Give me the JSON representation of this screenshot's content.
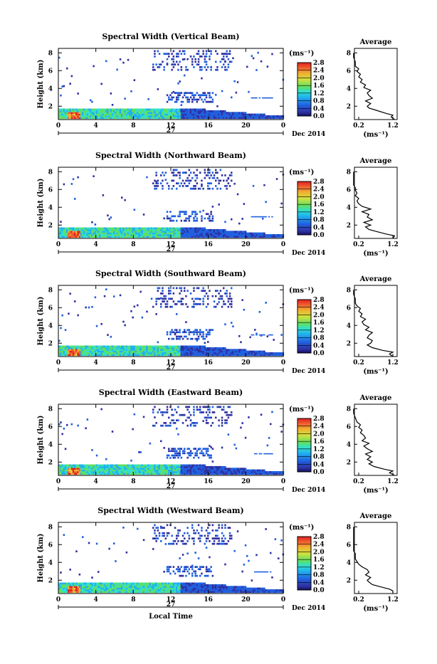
{
  "chart_data": [
    {
      "type": "heatmap",
      "title": "Spectral Width (Vertical Beam)",
      "ylabel": "Height (km)",
      "x_ticks": [
        "0",
        "4",
        "8",
        "12",
        "16",
        "20",
        "0"
      ],
      "y_ticks": [
        "2",
        "4",
        "6",
        "8"
      ],
      "date_day": "27",
      "date_label": "Dec 2014",
      "colorbar": {
        "unit": "(ms⁻¹)",
        "ticks": [
          "0.0",
          "0.4",
          "0.8",
          "1.2",
          "1.6",
          "2.0",
          "2.4",
          "2.8"
        ],
        "range": [
          0,
          2.8
        ]
      },
      "average": {
        "title": "Average",
        "x_ticks": [
          "0.2",
          "1.2"
        ],
        "y_ticks": [
          "2",
          "4",
          "6",
          "8"
        ],
        "unit": "(ms⁻¹)",
        "heights": [
          0.5,
          0.8,
          1.0,
          1.2,
          1.5,
          1.8,
          2.0,
          2.3,
          2.6,
          2.9,
          3.2,
          3.5,
          3.8,
          4.1,
          4.4,
          4.7,
          5.0,
          5.3,
          5.6,
          5.9,
          6.2,
          6.5,
          7.0,
          7.5,
          8.0
        ],
        "values": [
          1.25,
          1.15,
          1.2,
          1.0,
          0.75,
          0.5,
          0.45,
          0.55,
          0.4,
          0.6,
          0.5,
          0.45,
          0.55,
          0.35,
          0.4,
          0.25,
          0.3,
          0.2,
          0.25,
          0.15,
          0.2,
          0.1,
          0.1,
          0.05,
          0.05
        ]
      }
    },
    {
      "type": "heatmap",
      "title": "Spectral Width (Northward Beam)",
      "ylabel": "Height (km)",
      "x_ticks": [
        "0",
        "4",
        "8",
        "12",
        "16",
        "20",
        "0"
      ],
      "y_ticks": [
        "2",
        "4",
        "6",
        "8"
      ],
      "date_day": "27",
      "date_label": "Dec 2014",
      "colorbar": {
        "unit": "(ms⁻¹)",
        "ticks": [
          "0.0",
          "0.4",
          "0.8",
          "1.2",
          "1.6",
          "2.0",
          "2.4",
          "2.8"
        ],
        "range": [
          0,
          2.8
        ]
      },
      "average": {
        "title": "Average",
        "x_ticks": [
          "0.2",
          "1.2"
        ],
        "y_ticks": [
          "2",
          "4",
          "6",
          "8"
        ],
        "unit": "(ms⁻¹)",
        "heights": [
          0.5,
          0.8,
          1.0,
          1.2,
          1.5,
          1.8,
          2.0,
          2.3,
          2.6,
          2.9,
          3.2,
          3.5,
          3.8,
          4.1,
          4.4,
          4.7,
          5.0,
          5.3,
          5.6,
          5.9,
          6.2,
          6.5,
          7.0,
          7.5,
          8.0
        ],
        "values": [
          1.2,
          1.25,
          1.0,
          0.8,
          0.5,
          0.4,
          0.55,
          0.35,
          0.6,
          0.45,
          0.5,
          0.3,
          0.55,
          0.3,
          0.2,
          0.15,
          0.2,
          0.1,
          0.15,
          0.1,
          0.1,
          0.05,
          0.05,
          0.05,
          0.05
        ]
      }
    },
    {
      "type": "heatmap",
      "title": "Spectral Width (Southward Beam)",
      "ylabel": "Height (km)",
      "x_ticks": [
        "0",
        "4",
        "8",
        "12",
        "16",
        "20",
        "0"
      ],
      "y_ticks": [
        "2",
        "4",
        "6",
        "8"
      ],
      "date_day": "27",
      "date_label": "Dec 2014",
      "colorbar": {
        "unit": "(ms⁻¹)",
        "ticks": [
          "0.0",
          "0.4",
          "0.8",
          "1.2",
          "1.6",
          "2.0",
          "2.4",
          "2.8"
        ],
        "range": [
          0,
          2.8
        ]
      },
      "average": {
        "title": "Average",
        "x_ticks": [
          "0.2",
          "1.2"
        ],
        "y_ticks": [
          "2",
          "4",
          "6",
          "8"
        ],
        "unit": "(ms⁻¹)",
        "heights": [
          0.5,
          0.8,
          1.0,
          1.2,
          1.5,
          1.8,
          2.0,
          2.3,
          2.6,
          2.9,
          3.2,
          3.5,
          3.8,
          4.1,
          4.4,
          4.7,
          5.0,
          5.3,
          5.6,
          5.9,
          6.2,
          6.5,
          7.0,
          7.5,
          8.0
        ],
        "values": [
          1.2,
          1.1,
          1.2,
          0.9,
          0.6,
          0.45,
          0.55,
          0.6,
          0.45,
          0.5,
          0.6,
          0.4,
          0.5,
          0.35,
          0.3,
          0.4,
          0.25,
          0.3,
          0.2,
          0.25,
          0.15,
          0.1,
          0.1,
          0.05,
          0.05
        ]
      }
    },
    {
      "type": "heatmap",
      "title": "Spectral Width (Eastward Beam)",
      "ylabel": "Height (km)",
      "x_ticks": [
        "0",
        "4",
        "8",
        "12",
        "16",
        "20",
        "0"
      ],
      "y_ticks": [
        "2",
        "4",
        "6",
        "8"
      ],
      "date_day": "27",
      "date_label": "Dec 2014",
      "colorbar": {
        "unit": "(ms⁻¹)",
        "ticks": [
          "0.0",
          "0.4",
          "0.8",
          "1.2",
          "1.6",
          "2.0",
          "2.4",
          "2.8"
        ],
        "range": [
          0,
          2.8
        ]
      },
      "average": {
        "title": "Average",
        "x_ticks": [
          "0.2",
          "1.2"
        ],
        "y_ticks": [
          "2",
          "4",
          "6",
          "8"
        ],
        "unit": "(ms⁻¹)",
        "heights": [
          0.5,
          0.8,
          1.0,
          1.2,
          1.5,
          1.8,
          2.0,
          2.3,
          2.6,
          2.9,
          3.2,
          3.5,
          3.8,
          4.1,
          4.4,
          4.7,
          5.0,
          5.3,
          5.6,
          5.9,
          6.2,
          6.5,
          7.0,
          7.5,
          8.0
        ],
        "values": [
          1.25,
          1.1,
          1.2,
          0.95,
          0.65,
          0.5,
          0.6,
          0.45,
          0.55,
          0.4,
          0.6,
          0.45,
          0.35,
          0.5,
          0.3,
          0.4,
          0.35,
          0.25,
          0.3,
          0.2,
          0.25,
          0.15,
          0.1,
          0.05,
          0.05
        ]
      }
    },
    {
      "type": "heatmap",
      "title": "Spectral Width (Westward Beam)",
      "ylabel": "Height (km)",
      "x_ticks": [
        "0",
        "4",
        "8",
        "12",
        "16",
        "20",
        "0"
      ],
      "y_ticks": [
        "2",
        "4",
        "6",
        "8"
      ],
      "date_day": "27",
      "date_label": "Dec 2014",
      "xlabel": "Local Time",
      "colorbar": {
        "unit": "(ms⁻¹)",
        "ticks": [
          "0.0",
          "0.4",
          "0.8",
          "1.2",
          "1.6",
          "2.0",
          "2.4",
          "2.8"
        ],
        "range": [
          0,
          2.8
        ]
      },
      "average": {
        "title": "Average",
        "x_ticks": [
          "0.2",
          "1.2"
        ],
        "y_ticks": [
          "2",
          "4",
          "6",
          "8"
        ],
        "unit": "(ms⁻¹)",
        "heights": [
          0.5,
          0.8,
          1.0,
          1.2,
          1.5,
          1.8,
          2.0,
          2.3,
          2.6,
          2.9,
          3.2,
          3.5,
          3.8,
          4.1,
          4.4,
          4.7,
          5.0,
          5.3,
          5.6,
          5.9,
          6.2,
          6.5,
          7.0,
          7.5,
          8.0
        ],
        "values": [
          1.2,
          1.2,
          1.1,
          0.9,
          0.6,
          0.5,
          0.45,
          0.55,
          0.4,
          0.5,
          0.45,
          0.3,
          0.2,
          0.15,
          0.1,
          0.1,
          0.1,
          0.05,
          0.05,
          0.05,
          0.05,
          0.05,
          0.05,
          0.05,
          0.05
        ]
      }
    }
  ]
}
